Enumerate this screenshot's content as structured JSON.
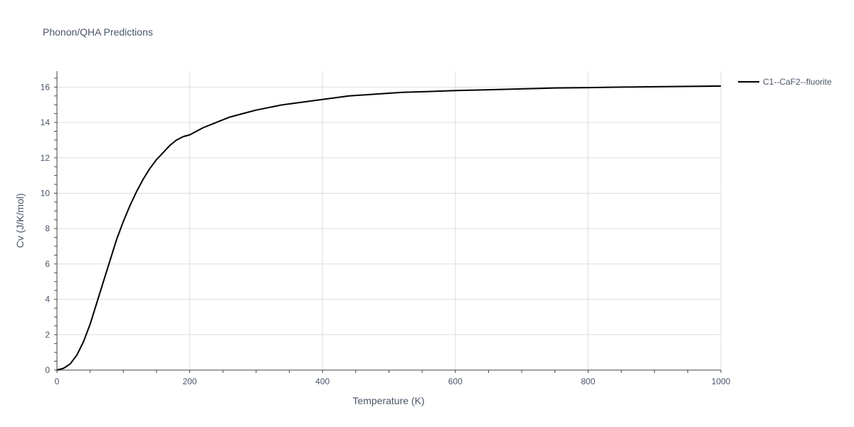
{
  "chart_data": {
    "type": "line",
    "title": "Phonon/QHA Predictions",
    "xlabel": "Temperature (K)",
    "ylabel": "Cv (J/K/mol)",
    "xlim": [
      0,
      1000
    ],
    "ylim": [
      0,
      16.9
    ],
    "xticks": [
      0,
      200,
      400,
      600,
      800,
      1000
    ],
    "yticks": [
      0,
      2,
      4,
      6,
      8,
      10,
      12,
      14,
      16
    ],
    "grid": true,
    "legend_position": "top-right",
    "series": [
      {
        "name": "C1--CaF2--fluorite",
        "color": "#000000",
        "x": [
          0,
          10,
          20,
          30,
          40,
          50,
          60,
          70,
          80,
          90,
          100,
          110,
          120,
          130,
          140,
          150,
          160,
          170,
          180,
          190,
          200,
          220,
          240,
          260,
          280,
          300,
          340,
          380,
          400,
          440,
          480,
          520,
          560,
          600,
          650,
          700,
          750,
          800,
          850,
          900,
          950,
          1000
        ],
        "y": [
          0,
          0.1,
          0.35,
          0.85,
          1.6,
          2.6,
          3.8,
          5.0,
          6.2,
          7.4,
          8.4,
          9.3,
          10.1,
          10.8,
          11.4,
          11.9,
          12.3,
          12.7,
          13.0,
          13.2,
          13.3,
          13.7,
          14.0,
          14.3,
          14.5,
          14.7,
          15.0,
          15.2,
          15.3,
          15.5,
          15.6,
          15.7,
          15.75,
          15.8,
          15.85,
          15.9,
          15.95,
          15.97,
          16.0,
          16.02,
          16.04,
          16.06
        ]
      }
    ]
  }
}
